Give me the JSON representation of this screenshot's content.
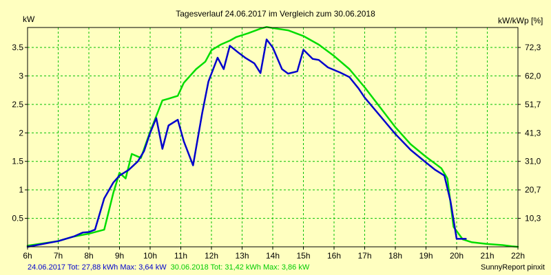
{
  "chart_data": {
    "type": "line",
    "title": "Tagesverlauf 24.06.2017 im Vergleich zum 30.06.2018",
    "ylabel_left": "kW",
    "ylabel_right": "kW/kWp [%]",
    "xlim": [
      6,
      22
    ],
    "ylim": [
      0,
      3.85
    ],
    "x_ticks": [
      {
        "v": 6,
        "label": "6h"
      },
      {
        "v": 7,
        "label": "7h"
      },
      {
        "v": 8,
        "label": "8h"
      },
      {
        "v": 9,
        "label": "9h"
      },
      {
        "v": 10,
        "label": "10h"
      },
      {
        "v": 11,
        "label": "11h"
      },
      {
        "v": 12,
        "label": "12h"
      },
      {
        "v": 13,
        "label": "13h"
      },
      {
        "v": 14,
        "label": "14h"
      },
      {
        "v": 15,
        "label": "15h"
      },
      {
        "v": 16,
        "label": "16h"
      },
      {
        "v": 17,
        "label": "17h"
      },
      {
        "v": 18,
        "label": "18h"
      },
      {
        "v": 19,
        "label": "19h"
      },
      {
        "v": 20,
        "label": "20h"
      },
      {
        "v": 21,
        "label": "21h"
      },
      {
        "v": 22,
        "label": "22h"
      }
    ],
    "y_ticks_left": [
      {
        "v": 0.5,
        "label": "0.5"
      },
      {
        "v": 1,
        "label": "1"
      },
      {
        "v": 1.5,
        "label": "1.5"
      },
      {
        "v": 2,
        "label": "2"
      },
      {
        "v": 2.5,
        "label": "2.5"
      },
      {
        "v": 3,
        "label": "3"
      },
      {
        "v": 3.5,
        "label": "3.5"
      }
    ],
    "y_ticks_right": [
      {
        "v": 0.5,
        "label": "10,3"
      },
      {
        "v": 1,
        "label": "20,7"
      },
      {
        "v": 1.5,
        "label": "31,0"
      },
      {
        "v": 2,
        "label": "41,3"
      },
      {
        "v": 2.5,
        "label": "51,7"
      },
      {
        "v": 3,
        "label": "62,0"
      },
      {
        "v": 3.5,
        "label": "72,3"
      }
    ],
    "grid": true,
    "series": [
      {
        "name": "24.06.2017",
        "color": "#0000cc",
        "points": [
          [
            6.0,
            0.0
          ],
          [
            7.0,
            0.1
          ],
          [
            7.5,
            0.18
          ],
          [
            7.8,
            0.25
          ],
          [
            8.0,
            0.26
          ],
          [
            8.2,
            0.3
          ],
          [
            8.5,
            0.85
          ],
          [
            8.8,
            1.13
          ],
          [
            9.0,
            1.25
          ],
          [
            9.3,
            1.35
          ],
          [
            9.6,
            1.5
          ],
          [
            9.8,
            1.68
          ],
          [
            10.0,
            2.0
          ],
          [
            10.2,
            2.26
          ],
          [
            10.4,
            1.72
          ],
          [
            10.6,
            2.13
          ],
          [
            10.9,
            2.23
          ],
          [
            11.1,
            1.85
          ],
          [
            11.4,
            1.43
          ],
          [
            11.7,
            2.35
          ],
          [
            11.9,
            2.9
          ],
          [
            12.2,
            3.32
          ],
          [
            12.4,
            3.12
          ],
          [
            12.6,
            3.53
          ],
          [
            12.9,
            3.4
          ],
          [
            13.1,
            3.32
          ],
          [
            13.4,
            3.22
          ],
          [
            13.6,
            3.05
          ],
          [
            13.8,
            3.64
          ],
          [
            14.0,
            3.5
          ],
          [
            14.3,
            3.12
          ],
          [
            14.5,
            3.04
          ],
          [
            14.8,
            3.08
          ],
          [
            15.0,
            3.46
          ],
          [
            15.3,
            3.3
          ],
          [
            15.5,
            3.28
          ],
          [
            15.8,
            3.15
          ],
          [
            16.2,
            3.06
          ],
          [
            16.5,
            2.98
          ],
          [
            16.8,
            2.78
          ],
          [
            17.0,
            2.62
          ],
          [
            17.5,
            2.3
          ],
          [
            18.0,
            1.98
          ],
          [
            18.5,
            1.7
          ],
          [
            19.0,
            1.48
          ],
          [
            19.3,
            1.35
          ],
          [
            19.6,
            1.25
          ],
          [
            19.8,
            0.8
          ],
          [
            20.0,
            0.14
          ],
          [
            20.3,
            0.14
          ]
        ]
      },
      {
        "name": "30.06.2018",
        "color": "#00dd00",
        "points": [
          [
            6.0,
            0.02
          ],
          [
            7.0,
            0.1
          ],
          [
            7.5,
            0.18
          ],
          [
            8.0,
            0.23
          ],
          [
            8.5,
            0.3
          ],
          [
            8.8,
            0.95
          ],
          [
            9.0,
            1.3
          ],
          [
            9.2,
            1.2
          ],
          [
            9.4,
            1.63
          ],
          [
            9.7,
            1.56
          ],
          [
            10.0,
            2.02
          ],
          [
            10.4,
            2.57
          ],
          [
            10.6,
            2.6
          ],
          [
            10.9,
            2.65
          ],
          [
            11.1,
            2.88
          ],
          [
            11.5,
            3.12
          ],
          [
            11.8,
            3.25
          ],
          [
            12.0,
            3.45
          ],
          [
            12.3,
            3.55
          ],
          [
            12.6,
            3.62
          ],
          [
            12.8,
            3.68
          ],
          [
            13.2,
            3.75
          ],
          [
            13.6,
            3.83
          ],
          [
            13.8,
            3.86
          ],
          [
            14.0,
            3.84
          ],
          [
            14.5,
            3.8
          ],
          [
            15.0,
            3.7
          ],
          [
            15.5,
            3.55
          ],
          [
            16.0,
            3.35
          ],
          [
            16.5,
            3.12
          ],
          [
            17.0,
            2.8
          ],
          [
            17.5,
            2.45
          ],
          [
            18.0,
            2.1
          ],
          [
            18.5,
            1.8
          ],
          [
            19.0,
            1.58
          ],
          [
            19.5,
            1.38
          ],
          [
            19.7,
            1.2
          ],
          [
            19.9,
            0.35
          ],
          [
            20.2,
            0.13
          ],
          [
            20.5,
            0.08
          ],
          [
            21.0,
            0.05
          ],
          [
            21.5,
            0.03
          ],
          [
            21.8,
            0.01
          ],
          [
            22.0,
            0.0
          ]
        ]
      }
    ],
    "legend_text_1": "24.06.2017 Tot: 27,88 kWh Max: 3,64 kW",
    "legend_text_2": "30.06.2018 Tot: 31,42 kWh Max: 3,86 kW",
    "credit": "SunnyReport pinxit"
  }
}
